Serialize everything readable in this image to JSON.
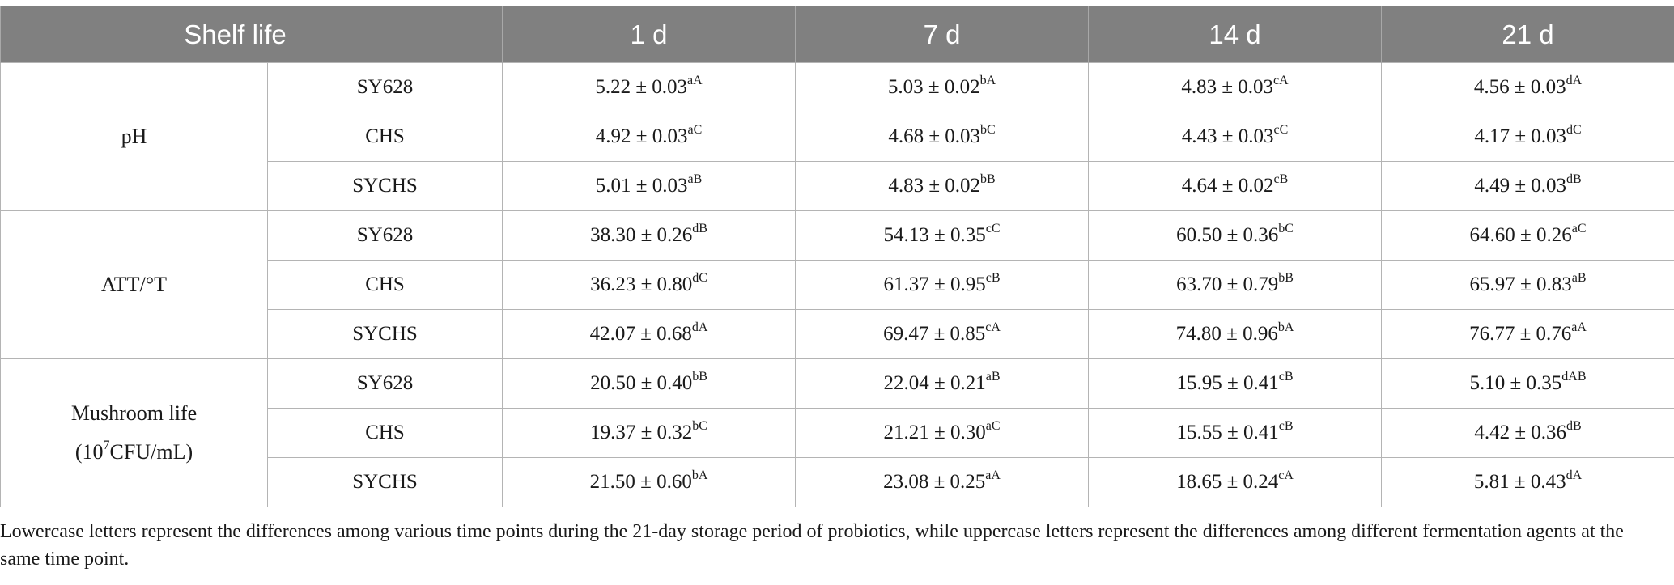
{
  "table": {
    "header": {
      "label": "Shelf life",
      "columns": [
        "1 d",
        "7 d",
        "14 d",
        "21 d"
      ]
    },
    "groups": [
      {
        "label_lines": [
          "pH"
        ],
        "rows": [
          {
            "agent": "SY628",
            "cells": [
              {
                "value": "5.22 ± 0.03",
                "sig": "aA"
              },
              {
                "value": "5.03 ± 0.02",
                "sig": "bA"
              },
              {
                "value": "4.83 ± 0.03",
                "sig": "cA"
              },
              {
                "value": "4.56 ± 0.03",
                "sig": "dA"
              }
            ]
          },
          {
            "agent": "CHS",
            "cells": [
              {
                "value": "4.92 ± 0.03",
                "sig": "aC"
              },
              {
                "value": "4.68 ± 0.03",
                "sig": "bC"
              },
              {
                "value": "4.43 ± 0.03",
                "sig": "cC"
              },
              {
                "value": "4.17 ± 0.03",
                "sig": "dC"
              }
            ]
          },
          {
            "agent": "SYCHS",
            "cells": [
              {
                "value": "5.01 ± 0.03",
                "sig": "aB"
              },
              {
                "value": "4.83 ± 0.02",
                "sig": "bB"
              },
              {
                "value": "4.64 ± 0.02",
                "sig": "cB"
              },
              {
                "value": "4.49 ± 0.03",
                "sig": "dB"
              }
            ]
          }
        ]
      },
      {
        "label_lines": [
          "ATT/°T"
        ],
        "rows": [
          {
            "agent": "SY628",
            "cells": [
              {
                "value": "38.30 ± 0.26",
                "sig": "dB"
              },
              {
                "value": "54.13 ± 0.35",
                "sig": "cC"
              },
              {
                "value": "60.50 ± 0.36",
                "sig": "bC"
              },
              {
                "value": "64.60 ± 0.26",
                "sig": "aC"
              }
            ]
          },
          {
            "agent": "CHS",
            "cells": [
              {
                "value": "36.23 ± 0.80",
                "sig": "dC"
              },
              {
                "value": "61.37 ± 0.95",
                "sig": "cB"
              },
              {
                "value": "63.70 ± 0.79",
                "sig": "bB"
              },
              {
                "value": "65.97 ± 0.83",
                "sig": "aB"
              }
            ]
          },
          {
            "agent": "SYCHS",
            "cells": [
              {
                "value": "42.07 ± 0.68",
                "sig": "dA"
              },
              {
                "value": "69.47 ± 0.85",
                "sig": "cA"
              },
              {
                "value": "74.80 ± 0.96",
                "sig": "bA"
              },
              {
                "value": "76.77 ± 0.76",
                "sig": "aA"
              }
            ]
          }
        ]
      },
      {
        "label_lines": [
          "Mushroom life",
          "(10",
          "7",
          "CFU/mL)"
        ],
        "rows": [
          {
            "agent": "SY628",
            "cells": [
              {
                "value": "20.50 ± 0.40",
                "sig": "bB"
              },
              {
                "value": "22.04 ± 0.21",
                "sig": "aB"
              },
              {
                "value": "15.95 ± 0.41",
                "sig": "cB"
              },
              {
                "value": "5.10 ± 0.35",
                "sig": "dAB"
              }
            ]
          },
          {
            "agent": "CHS",
            "cells": [
              {
                "value": "19.37 ± 0.32",
                "sig": "bC"
              },
              {
                "value": "21.21 ± 0.30",
                "sig": "aC"
              },
              {
                "value": "15.55 ± 0.41",
                "sig": "cB"
              },
              {
                "value": "4.42 ± 0.36",
                "sig": "dB"
              }
            ]
          },
          {
            "agent": "SYCHS",
            "cells": [
              {
                "value": "21.50 ± 0.60",
                "sig": "bA"
              },
              {
                "value": "23.08 ± 0.25",
                "sig": "aA"
              },
              {
                "value": "18.65 ± 0.24",
                "sig": "cA"
              },
              {
                "value": "5.81 ± 0.43",
                "sig": "dA"
              }
            ]
          }
        ]
      }
    ]
  },
  "footnote": "Lowercase letters represent the differences among various time points during the 21-day storage period of probiotics, while uppercase letters represent the differences among different fermentation agents at the same time point.",
  "colors": {
    "header_bg": "#808080",
    "header_text": "#ffffff",
    "grid": "#b4b4b4",
    "text": "#1a1a1a"
  }
}
